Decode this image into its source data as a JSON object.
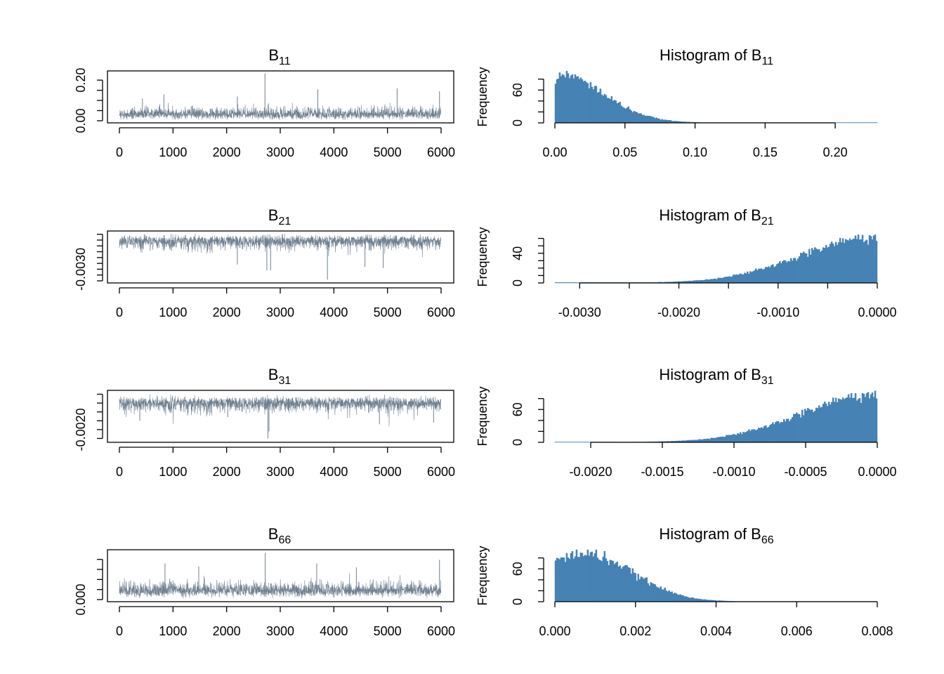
{
  "colors": {
    "trace": "#708090",
    "histogram": "#4682b4",
    "axis": "#000000",
    "background": "#ffffff"
  },
  "chart_data": [
    {
      "type": "line",
      "title": "B11",
      "title_base": "B",
      "title_sub": "11",
      "xlabel": "",
      "ylabel": "",
      "xlim": [
        0,
        6000
      ],
      "ylim": [
        0,
        0.235
      ],
      "xticks": [
        0,
        1000,
        2000,
        3000,
        4000,
        5000,
        6000
      ],
      "xtick_labels": [
        "0",
        "1000",
        "2000",
        "3000",
        "4000",
        "5000",
        "6000"
      ],
      "yticks": [
        0,
        0.05,
        0.1,
        0.15,
        0.2
      ],
      "ytick_labels": [
        "0.00",
        "",
        "",
        "",
        "0.20"
      ],
      "trace": {
        "n": 6000,
        "base": 0.018,
        "noise": 0.024,
        "direction": 1,
        "spikes": [
          [
            2715,
            0.233
          ],
          [
            5180,
            0.16
          ],
          [
            3700,
            0.155
          ],
          [
            5970,
            0.145
          ],
          [
            830,
            0.13
          ],
          [
            430,
            0.11
          ],
          [
            2200,
            0.12
          ]
        ]
      }
    },
    {
      "type": "bar",
      "title": "Histogram of B11",
      "title_base": "Histogram of B",
      "title_sub": "11",
      "xlabel": "",
      "ylabel": "Frequency",
      "xlim": [
        0,
        0.23
      ],
      "ylim": [
        0,
        95
      ],
      "xticks": [
        0,
        0.05,
        0.1,
        0.15,
        0.2
      ],
      "xtick_labels": [
        "0.00",
        "0.05",
        "0.10",
        "0.15",
        "0.20"
      ],
      "yticks": [
        0,
        20,
        40,
        60,
        80
      ],
      "ytick_labels": [
        "0",
        "",
        "",
        "60",
        ""
      ],
      "bins": {
        "n": 230,
        "min": 0,
        "max": 0.23,
        "peak": 92,
        "shape": "half-normal",
        "scale": 0.033
      }
    },
    {
      "type": "line",
      "title": "B21",
      "title_base": "B",
      "title_sub": "21",
      "xlabel": "",
      "ylabel": "",
      "xlim": [
        0,
        6000
      ],
      "ylim": [
        -0.004,
        0.0001
      ],
      "xticks": [
        0,
        1000,
        2000,
        3000,
        4000,
        5000,
        6000
      ],
      "xtick_labels": [
        "0",
        "1000",
        "2000",
        "3000",
        "4000",
        "5000",
        "6000"
      ],
      "yticks": [
        -0.004,
        -0.0035,
        -0.003,
        -0.0025,
        -0.002,
        -0.0015,
        -0.001,
        -0.0005,
        0
      ],
      "ytick_labels": [
        "",
        "",
        "-0.0030",
        "",
        "",
        "",
        "",
        "",
        ""
      ],
      "trace": {
        "n": 6000,
        "base": -0.0003,
        "noise": 0.0005,
        "direction": -1,
        "spikes": [
          [
            3880,
            -0.0039
          ],
          [
            2750,
            -0.0031
          ],
          [
            2820,
            -0.0031
          ],
          [
            4920,
            -0.0029
          ],
          [
            4580,
            -0.0028
          ],
          [
            2200,
            -0.0026
          ]
        ]
      }
    },
    {
      "type": "bar",
      "title": "Histogram of B21",
      "title_base": "Histogram of B",
      "title_sub": "21",
      "xlabel": "",
      "ylabel": "Frequency",
      "xlim": [
        -0.00325,
        0
      ],
      "ylim": [
        0,
        70
      ],
      "xticks": [
        -0.003,
        -0.0025,
        -0.002,
        -0.0015,
        -0.001,
        -0.0005,
        0
      ],
      "xtick_labels": [
        "-0.0030",
        "",
        "-0.0020",
        "",
        "-0.0010",
        "",
        "0.0000"
      ],
      "yticks": [
        0,
        10,
        20,
        30,
        40,
        50,
        60
      ],
      "ytick_labels": [
        "0",
        "",
        "",
        "",
        "40",
        "",
        ""
      ],
      "bins": {
        "n": 230,
        "min": -0.00325,
        "max": 0,
        "peak": 62,
        "shape": "half-normal-left",
        "scale": 0.00075
      }
    },
    {
      "type": "line",
      "title": "B31",
      "title_base": "B",
      "title_sub": "31",
      "xlabel": "",
      "ylabel": "",
      "xlim": [
        0,
        6000
      ],
      "ylim": [
        -0.0026,
        0.0001
      ],
      "xticks": [
        0,
        1000,
        2000,
        3000,
        4000,
        5000,
        6000
      ],
      "xtick_labels": [
        "0",
        "1000",
        "2000",
        "3000",
        "4000",
        "5000",
        "6000"
      ],
      "yticks": [
        -0.0025,
        -0.002,
        -0.0015,
        -0.001,
        -0.0005,
        0
      ],
      "ytick_labels": [
        "",
        "-0.0020",
        "",
        "",
        "",
        ""
      ],
      "trace": {
        "n": 6000,
        "base": -0.0003,
        "noise": 0.00035,
        "direction": -1,
        "spikes": [
          [
            2770,
            -0.0025
          ],
          [
            2790,
            -0.0021
          ],
          [
            380,
            -0.0015
          ],
          [
            5860,
            -0.0016
          ],
          [
            4850,
            -0.0017
          ],
          [
            2020,
            -0.0013
          ]
        ]
      }
    },
    {
      "type": "bar",
      "title": "Histogram of B31",
      "title_base": "Histogram of B",
      "title_sub": "31",
      "xlabel": "",
      "ylabel": "Frequency",
      "xlim": [
        -0.00225,
        0
      ],
      "ylim": [
        0,
        95
      ],
      "xticks": [
        -0.002,
        -0.0015,
        -0.001,
        -0.0005,
        0
      ],
      "xtick_labels": [
        "-0.0020",
        "-0.0015",
        "-0.0010",
        "-0.0005",
        "0.0000"
      ],
      "yticks": [
        0,
        20,
        40,
        60,
        80
      ],
      "ytick_labels": [
        "0",
        "",
        "",
        "60",
        ""
      ],
      "bins": {
        "n": 230,
        "min": -0.00225,
        "max": 0,
        "peak": 88,
        "shape": "half-normal-left",
        "scale": 0.00052
      }
    },
    {
      "type": "line",
      "title": "B66",
      "title_base": "B",
      "title_sub": "66",
      "xlabel": "",
      "ylabel": "",
      "xlim": [
        0,
        6000
      ],
      "ylim": [
        0,
        0.0095
      ],
      "xticks": [
        0,
        1000,
        2000,
        3000,
        4000,
        5000,
        6000
      ],
      "xtick_labels": [
        "0",
        "1000",
        "2000",
        "3000",
        "4000",
        "5000",
        "6000"
      ],
      "yticks": [
        0,
        0.002,
        0.004,
        0.006,
        0.008
      ],
      "ytick_labels": [
        "0.000",
        "",
        "",
        "",
        ""
      ],
      "trace": {
        "n": 6000,
        "base": 0.0011,
        "noise": 0.0012,
        "direction": 1,
        "spikes": [
          [
            2720,
            0.0093
          ],
          [
            5970,
            0.0079
          ],
          [
            850,
            0.0072
          ],
          [
            3680,
            0.0072
          ],
          [
            1480,
            0.0066
          ],
          [
            4420,
            0.0064
          ]
        ]
      }
    },
    {
      "type": "bar",
      "title": "Histogram of B66",
      "title_base": "Histogram of B",
      "title_sub": "66",
      "xlabel": "",
      "ylabel": "Frequency",
      "xlim": [
        0,
        0.008
      ],
      "ylim": [
        0,
        95
      ],
      "xticks": [
        0,
        0.002,
        0.004,
        0.006,
        0.008
      ],
      "xtick_labels": [
        "0.000",
        "0.002",
        "0.004",
        "0.006",
        "0.008"
      ],
      "yticks": [
        0,
        20,
        40,
        60,
        80
      ],
      "ytick_labels": [
        "0",
        "",
        "",
        "60",
        ""
      ],
      "bins": {
        "n": 230,
        "min": 0,
        "max": 0.008,
        "peak": 88,
        "shape": "gamma-like",
        "scale": 0.0012
      }
    }
  ]
}
